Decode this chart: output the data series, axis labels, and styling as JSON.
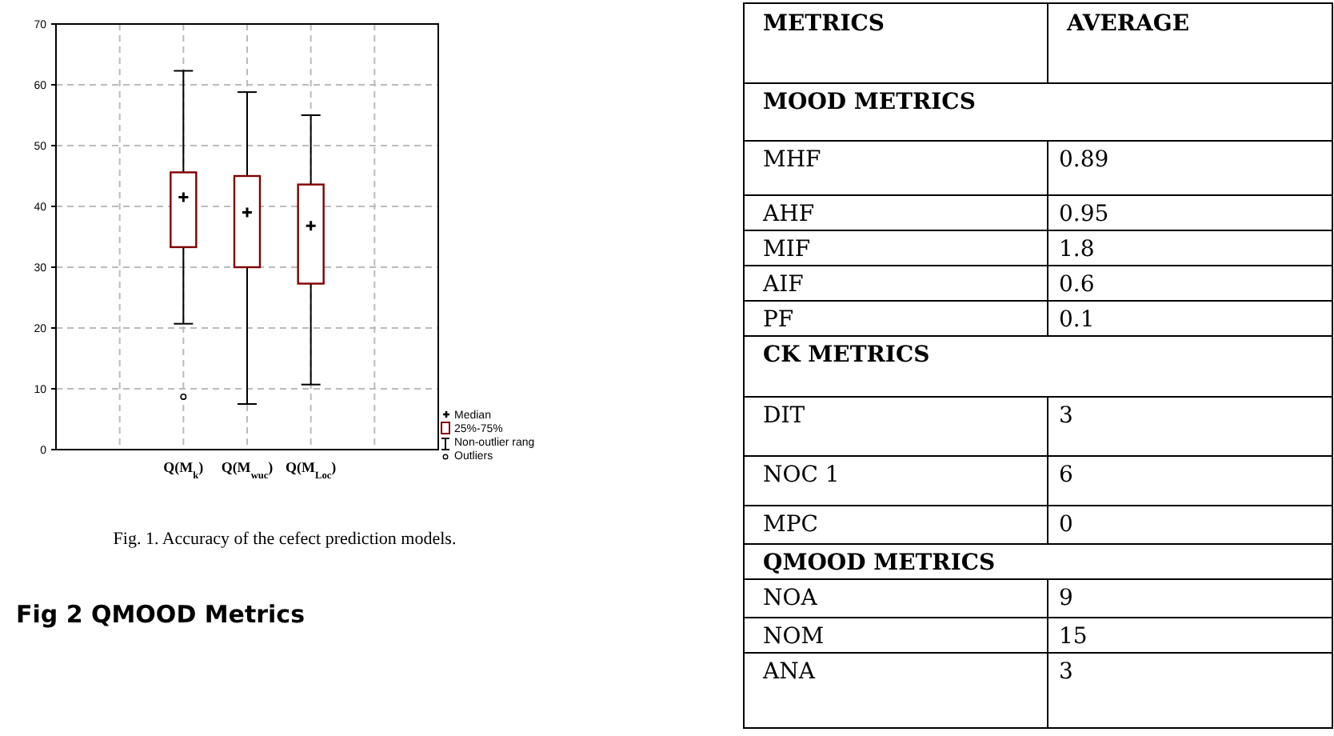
{
  "chart_data": [
    {
      "type": "box",
      "categories": [
        null,
        "Q(M$_{k}$)",
        "Q(M$_{wuc}$)",
        "Q(M$_{Loc}$)",
        null
      ],
      "color": "#800000",
      "boxes": [
        null,
        {
          "low": 20.7,
          "q1": 33.3,
          "median": 41.5,
          "q3": 45.6,
          "high": 62.3,
          "outliers": [
            8.7
          ]
        },
        {
          "low": 7.5,
          "q1": 30,
          "median": 39,
          "q3": 45,
          "high": 58.8
        },
        {
          "low": 10.7,
          "q1": 27.3,
          "median": 36.8,
          "q3": 43.6,
          "high": 55
        },
        null
      ],
      "ylim": [
        0,
        70
      ],
      "yticks": [
        0,
        10,
        20,
        30,
        40,
        50,
        60,
        70
      ],
      "grid": true,
      "annotations": [
        "Median",
        "25%-75%",
        "Non-outlier rang",
        "Outliers",
        "Fig. 1. Accuracy of the cefect prediction models."
      ]
    },
    {
      "type": "other",
      "title": "Fig 2 QMOOD Metrics",
      "categories": [
        "METRICS",
        "AVERAGE"
      ],
      "y_categories": [
        "MOOD METRICS",
        "MHF",
        "AHF",
        "MIF",
        "AIF",
        "PF",
        "CK METRICS",
        "DIT",
        "NOC 1",
        "MPC",
        "QMOOD METRICS",
        "NOA",
        "NOM",
        "ANA"
      ],
      "cell_labels": [
        [
          null
        ],
        [
          "0.89"
        ],
        [
          "0.95"
        ],
        [
          "1.8"
        ],
        [
          "0.6"
        ],
        [
          "0.1"
        ],
        [
          null
        ],
        [
          "3"
        ],
        [
          "6"
        ],
        [
          "0"
        ],
        [
          null
        ],
        [
          "9"
        ],
        [
          "15"
        ],
        [
          "3"
        ]
      ]
    }
  ]
}
